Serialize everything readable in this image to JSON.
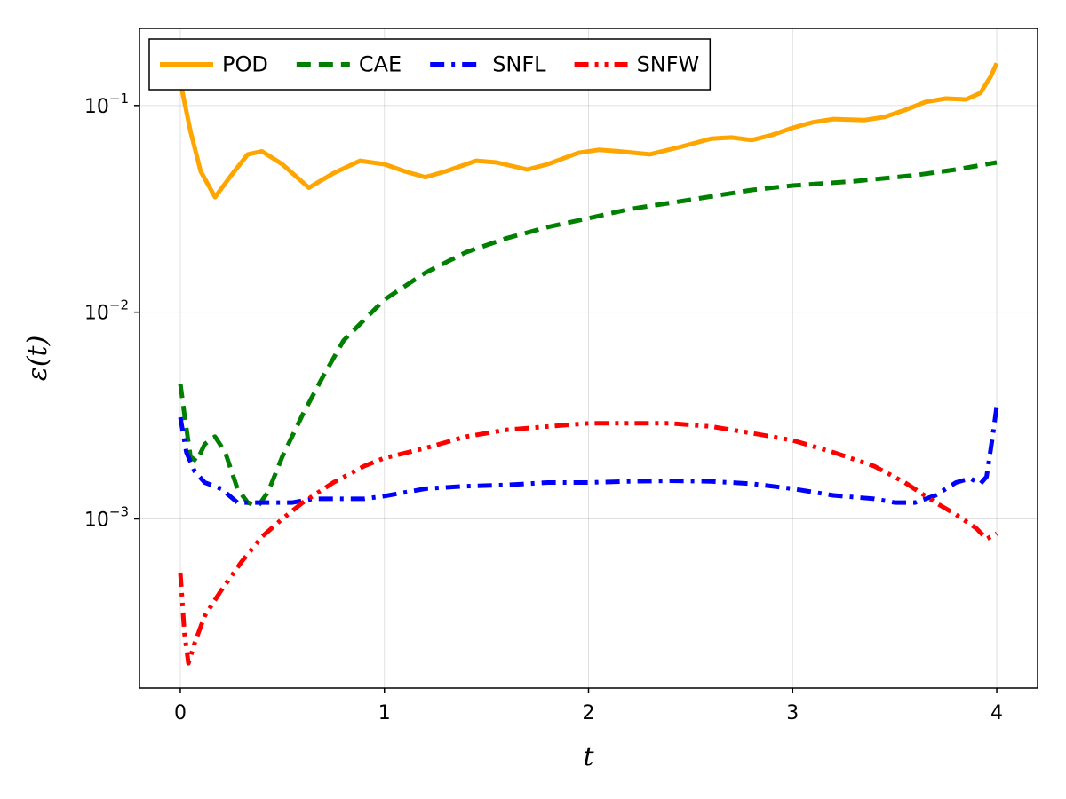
{
  "chart_data": {
    "type": "line",
    "title": "",
    "xlabel": "t",
    "ylabel": "ε(t)",
    "xlim": [
      -0.2,
      4.2
    ],
    "ylim": [
      0.000152,
      0.236
    ],
    "yscale": "log",
    "grid": true,
    "legend_position": "top-left",
    "x_ticks": [
      0,
      1,
      2,
      3,
      4
    ],
    "x_tick_labels": [
      "0",
      "1",
      "2",
      "3",
      "4"
    ],
    "y_ticks": [
      0.1,
      0.01,
      0.001
    ],
    "y_tick_labels": [
      {
        "base": "10",
        "exp": "−1"
      },
      {
        "base": "10",
        "exp": "−2"
      },
      {
        "base": "10",
        "exp": "−3"
      }
    ],
    "series": [
      {
        "name": "POD",
        "color": "#FFA500",
        "dash": "solid",
        "x": [
          0,
          0.05,
          0.1,
          0.17,
          0.25,
          0.33,
          0.4,
          0.5,
          0.63,
          0.75,
          0.88,
          1.0,
          1.1,
          1.2,
          1.3,
          1.45,
          1.55,
          1.7,
          1.8,
          1.95,
          2.05,
          2.15,
          2.3,
          2.45,
          2.6,
          2.7,
          2.8,
          2.9,
          3.0,
          3.1,
          3.2,
          3.35,
          3.45,
          3.55,
          3.65,
          3.75,
          3.85,
          3.92,
          3.97,
          4.0
        ],
        "y": [
          0.13,
          0.075,
          0.048,
          0.036,
          0.046,
          0.058,
          0.06,
          0.052,
          0.04,
          0.047,
          0.054,
          0.052,
          0.048,
          0.045,
          0.048,
          0.054,
          0.053,
          0.049,
          0.052,
          0.059,
          0.061,
          0.06,
          0.058,
          0.063,
          0.069,
          0.07,
          0.068,
          0.072,
          0.078,
          0.083,
          0.086,
          0.085,
          0.088,
          0.095,
          0.104,
          0.108,
          0.107,
          0.115,
          0.138,
          0.16
        ]
      },
      {
        "name": "CAE",
        "color": "#008000",
        "dash": "dash",
        "x": [
          0,
          0.02,
          0.05,
          0.08,
          0.12,
          0.17,
          0.22,
          0.28,
          0.33,
          0.38,
          0.43,
          0.5,
          0.6,
          0.7,
          0.8,
          1.0,
          1.2,
          1.4,
          1.6,
          1.8,
          2.0,
          2.2,
          2.5,
          2.8,
          3.0,
          3.3,
          3.6,
          3.8,
          4.0
        ],
        "y": [
          0.0045,
          0.0032,
          0.002,
          0.0019,
          0.0023,
          0.0025,
          0.0021,
          0.0014,
          0.0012,
          0.00115,
          0.00135,
          0.002,
          0.0032,
          0.0049,
          0.0073,
          0.0115,
          0.0155,
          0.0195,
          0.0228,
          0.0258,
          0.0285,
          0.0315,
          0.035,
          0.039,
          0.041,
          0.043,
          0.046,
          0.049,
          0.053
        ]
      },
      {
        "name": "SNFL",
        "color": "#0000FF",
        "dash": "dashdot",
        "x": [
          0,
          0.03,
          0.07,
          0.12,
          0.2,
          0.28,
          0.35,
          0.45,
          0.55,
          0.65,
          0.75,
          0.9,
          1.0,
          1.2,
          1.4,
          1.6,
          1.8,
          2.0,
          2.2,
          2.4,
          2.6,
          2.8,
          3.0,
          3.2,
          3.4,
          3.5,
          3.6,
          3.7,
          3.8,
          3.87,
          3.92,
          3.95,
          3.98,
          4.0
        ],
        "y": [
          0.0031,
          0.0021,
          0.0017,
          0.0015,
          0.0014,
          0.0012,
          0.0012,
          0.0012,
          0.0012,
          0.00125,
          0.00125,
          0.00125,
          0.00129,
          0.0014,
          0.00144,
          0.00146,
          0.0015,
          0.0015,
          0.00152,
          0.00153,
          0.00152,
          0.00148,
          0.0014,
          0.0013,
          0.00125,
          0.0012,
          0.0012,
          0.0013,
          0.0015,
          0.00157,
          0.00148,
          0.0016,
          0.0025,
          0.0035
        ]
      },
      {
        "name": "SNFW",
        "color": "#FF0000",
        "dash": "dashdotdot",
        "x": [
          0,
          0.02,
          0.04,
          0.07,
          0.12,
          0.2,
          0.3,
          0.4,
          0.5,
          0.6,
          0.75,
          0.9,
          1.0,
          1.2,
          1.4,
          1.6,
          1.8,
          2.0,
          2.2,
          2.4,
          2.6,
          2.8,
          3.0,
          3.2,
          3.4,
          3.55,
          3.7,
          3.8,
          3.9,
          3.95,
          4.0
        ],
        "y": [
          0.00055,
          0.00028,
          0.0002,
          0.00025,
          0.00034,
          0.00045,
          0.00062,
          0.00082,
          0.001,
          0.0012,
          0.0015,
          0.0018,
          0.00197,
          0.0022,
          0.0025,
          0.0027,
          0.0028,
          0.0029,
          0.0029,
          0.0029,
          0.0028,
          0.0026,
          0.0024,
          0.0021,
          0.0018,
          0.0015,
          0.0012,
          0.00105,
          0.0009,
          0.0008,
          0.00085
        ]
      }
    ]
  }
}
